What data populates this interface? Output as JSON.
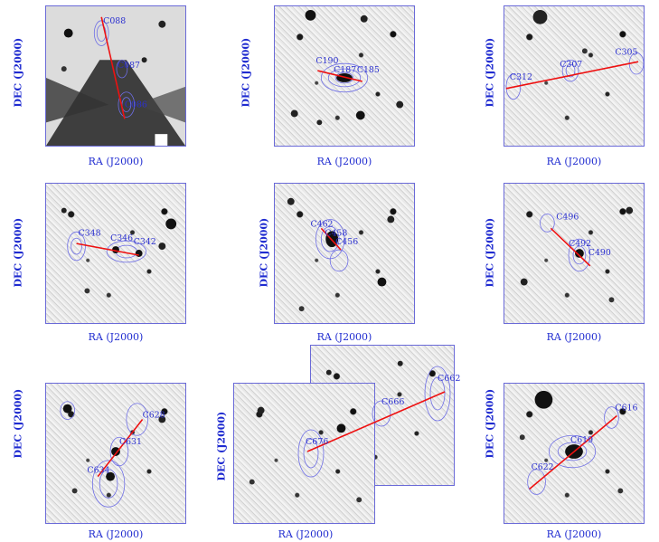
{
  "axes": {
    "ylabel": "DEC (J2000)",
    "xlabel": "RA (J2000)"
  },
  "panels": [
    {
      "labels": [
        "C088",
        "C087",
        "C086"
      ]
    },
    {
      "labels": [
        "C190",
        "C187",
        "C185"
      ]
    },
    {
      "labels": [
        "C312",
        "C307",
        "C305"
      ]
    },
    {
      "labels": [
        "C348",
        "C346",
        "C342"
      ]
    },
    {
      "labels": [
        "C462",
        "C458",
        "C456"
      ]
    },
    {
      "labels": [
        "C496",
        "C492",
        "C490"
      ]
    },
    {
      "labels": [
        "C628",
        "C631",
        "C634"
      ]
    },
    {
      "labels": [
        "C676",
        "C666",
        "C662"
      ]
    },
    {
      "labels": [
        "C616",
        "C619",
        "C622"
      ]
    }
  ],
  "colors": {
    "line": "#ee1111",
    "label": "#1f2bd0",
    "contour": "#6e6ee6"
  }
}
